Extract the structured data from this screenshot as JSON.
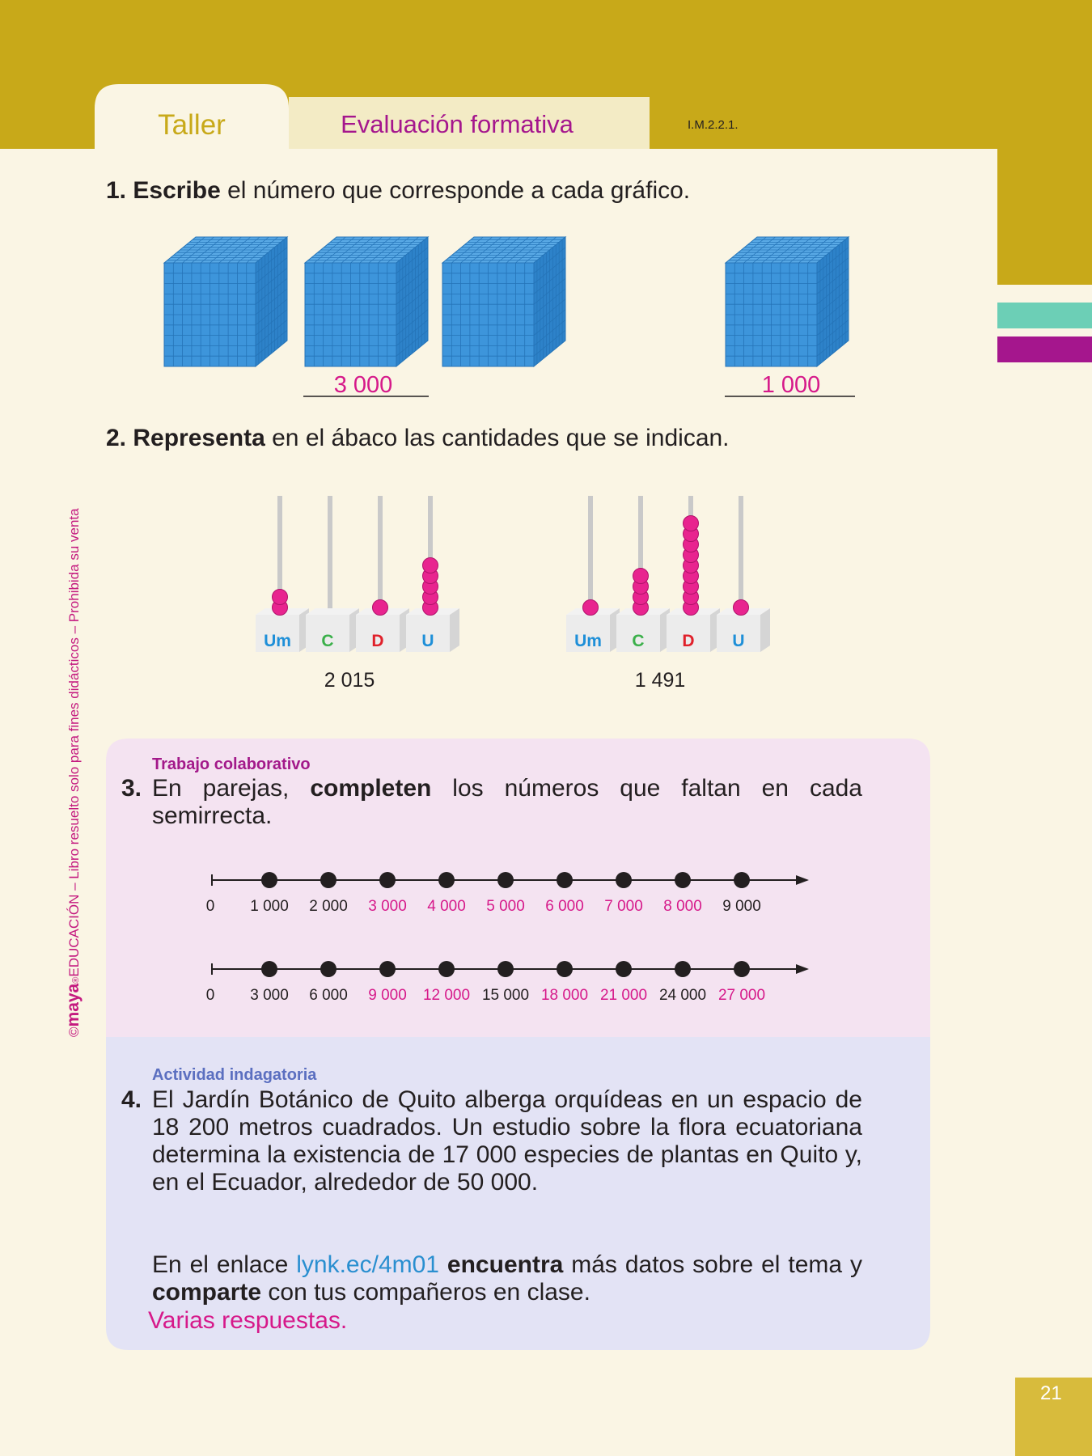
{
  "header": {
    "tab": "Taller",
    "section": "Evaluación formativa",
    "code": "I.M.2.2.1."
  },
  "sidebar": [
    "©",
    "maya",
    "®",
    "EDUCACIÓN – Libro resuelto solo para fines didácticos – Prohibida su venta"
  ],
  "q1": {
    "number": "1.",
    "segments": [
      {
        "text": "Escribe",
        "bold": true
      },
      {
        "text": " el número que corresponde a cada gráfico."
      }
    ],
    "answers": [
      "3 000",
      "1 000"
    ]
  },
  "q2": {
    "number": "2.",
    "segments": [
      {
        "text": "Representa",
        "bold": true
      },
      {
        "text": " en el ábaco las cantidades que se indican."
      }
    ],
    "abacus": [
      {
        "columns": [
          "Um",
          "C",
          "D",
          "U"
        ],
        "number": "2 015"
      },
      {
        "columns": [
          "Um",
          "C",
          "D",
          "U"
        ],
        "number": "1 491"
      }
    ]
  },
  "q3": {
    "tag": "Trabajo colaborativo",
    "number": "3.",
    "segments": [
      {
        "text": "En parejas, "
      },
      {
        "text": "completen",
        "bold": true
      },
      {
        "text": " los números que faltan en cada semirrecta."
      }
    ],
    "number_lines": [
      {
        "labels": [
          "0",
          "1 000",
          "2 000",
          "3 000",
          "4 000",
          "5 000",
          "6 000",
          "7 000",
          "8 000",
          "9 000"
        ],
        "colors": [
          "#231f20",
          "#231f20",
          "#231f20",
          "#d6198a",
          "#d6198a",
          "#d6198a",
          "#d6198a",
          "#d6198a",
          "#d6198a",
          "#231f20"
        ]
      },
      {
        "labels": [
          "0",
          "3 000",
          "6 000",
          "9 000",
          "12 000",
          "15 000",
          "18 000",
          "21 000",
          "24 000",
          "27 000"
        ],
        "colors": [
          "#231f20",
          "#231f20",
          "#231f20",
          "#d6198a",
          "#d6198a",
          "#231f20",
          "#d6198a",
          "#d6198a",
          "#231f20",
          "#d6198a"
        ]
      }
    ]
  },
  "q4": {
    "tag": "Actividad indagatoria",
    "number": "4.",
    "paragraph": "El Jardín Botánico de Quito alberga orquídeas en un espacio de 18 200 metros cuadrados. Un estudio sobre la flora ecuatoriana determina la existencia de 17 000 especies de plantas en Quito y, en el Ecuador, alrededor de 50 000.",
    "segments": [
      {
        "text": "En el enlace "
      },
      {
        "text": "lynk.ec/4m01",
        "link": true
      },
      {
        "text": " "
      },
      {
        "text": "encuentra",
        "bold": true
      },
      {
        "text": " más datos sobre el tema y "
      },
      {
        "text": "comparte",
        "bold": true
      },
      {
        "text": " con tus compañeros en clase."
      }
    ],
    "answer": "Varias respuestas."
  },
  "page_number": "21"
}
